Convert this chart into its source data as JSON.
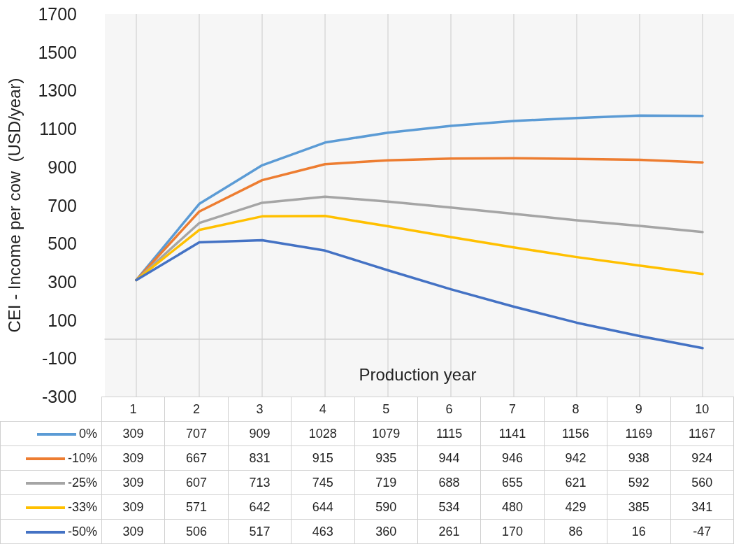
{
  "chart_data": {
    "type": "line",
    "ylabel": "CEI - Income per cow  (USD/year)",
    "xlabel": "Production year",
    "categories": [
      "1",
      "2",
      "3",
      "4",
      "5",
      "6",
      "7",
      "8",
      "9",
      "10"
    ],
    "series": [
      {
        "name": "0%",
        "color": "#5b9bd5",
        "values": [
          309,
          707,
          909,
          1028,
          1079,
          1115,
          1141,
          1156,
          1169,
          1167
        ]
      },
      {
        "name": "-10%",
        "color": "#ed7d31",
        "values": [
          309,
          667,
          831,
          915,
          935,
          944,
          946,
          942,
          938,
          924
        ]
      },
      {
        "name": "-25%",
        "color": "#a5a5a5",
        "values": [
          309,
          607,
          713,
          745,
          719,
          688,
          655,
          621,
          592,
          560
        ]
      },
      {
        "name": "-33%",
        "color": "#ffc000",
        "values": [
          309,
          571,
          642,
          644,
          590,
          534,
          480,
          429,
          385,
          341
        ]
      },
      {
        "name": "-50%",
        "color": "#4472c4",
        "values": [
          309,
          506,
          517,
          463,
          360,
          261,
          170,
          86,
          16,
          -47
        ]
      }
    ],
    "ylim": [
      -300,
      1700
    ],
    "yticks": [
      -300,
      -100,
      100,
      300,
      500,
      700,
      900,
      1100,
      1300,
      1500,
      1700
    ],
    "grid": "x",
    "legend": "bottom",
    "data_labels": true,
    "marker": "none",
    "line_style": "solid"
  }
}
